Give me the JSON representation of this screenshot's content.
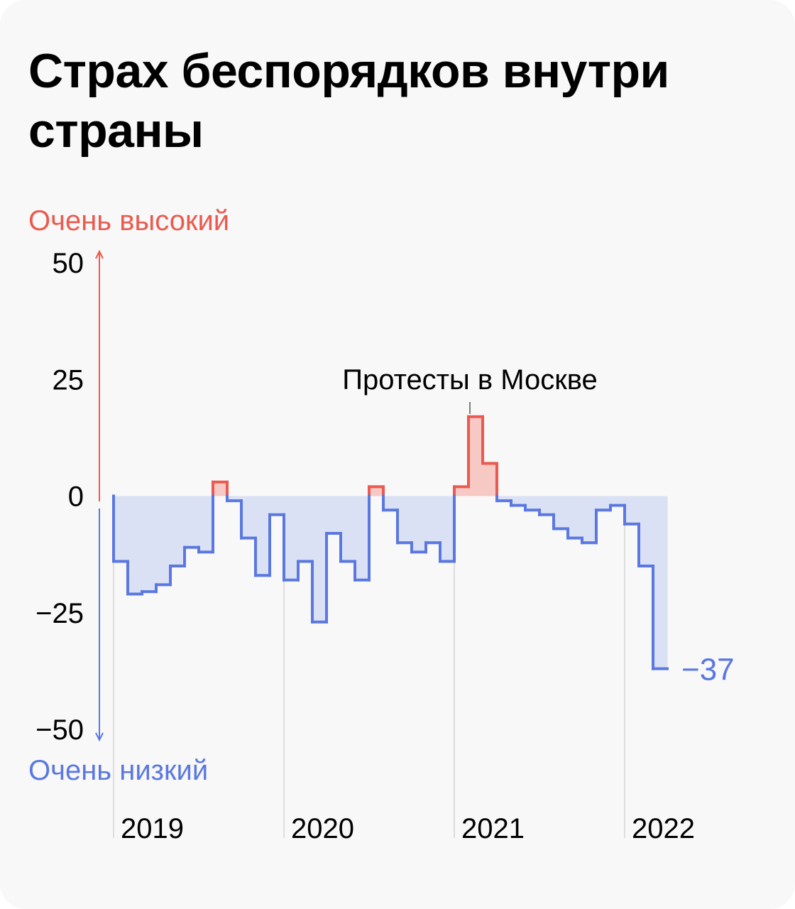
{
  "title": "Страх беспорядков внутри страны",
  "colors": {
    "background": "#f8f8f8",
    "positive": "#ea5a4f",
    "positive_fill": "#f7c9c5",
    "negative": "#5a78e0",
    "negative_fill": "#dbe1f5",
    "gridline": "#d4d4d4",
    "text": "#000000"
  },
  "chart_data": {
    "type": "area",
    "title": "Страх беспорядков внутри страны",
    "step": true,
    "high_label": "Очень высокий",
    "low_label": "Очень низкий",
    "ylim": [
      -50,
      50
    ],
    "yticks": [
      {
        "value": 50,
        "label": "50"
      },
      {
        "value": 25,
        "label": "25"
      },
      {
        "value": 0,
        "label": "0"
      },
      {
        "value": -25,
        "label": "−25"
      },
      {
        "value": -50,
        "label": "−50"
      }
    ],
    "xlim": [
      2019,
      2022.25
    ],
    "xticks": [
      {
        "value": 2019,
        "label": "2019"
      },
      {
        "value": 2020,
        "label": "2020"
      },
      {
        "value": 2021,
        "label": "2021"
      },
      {
        "value": 2022,
        "label": "2022"
      }
    ],
    "grid": "vertical lines at year starts",
    "series": [
      {
        "x": [
          2019,
          2019.0833,
          2019.1667,
          2019.25,
          2019.3333,
          2019.4167,
          2019.5,
          2019.5833,
          2019.6667,
          2019.75,
          2019.8333,
          2019.9167,
          2020,
          2020.0833,
          2020.1667,
          2020.25,
          2020.3333,
          2020.4167,
          2020.5,
          2020.5833,
          2020.6667,
          2020.75,
          2020.8333,
          2020.9167,
          2021,
          2021.0833,
          2021.1667,
          2021.25,
          2021.3333,
          2021.4167,
          2021.5,
          2021.5833,
          2021.6667,
          2021.75,
          2021.8333,
          2021.9167,
          2022,
          2022.0833,
          2022.1667
        ],
        "values": [
          -14,
          -21,
          -20.5,
          -19,
          -15,
          -11,
          -12,
          3,
          -1,
          -9,
          -17,
          -4,
          -18,
          -14,
          -27,
          -8,
          -14,
          -18,
          2,
          -3,
          -10,
          -12,
          -10,
          -14,
          2,
          17,
          7,
          -1,
          -2,
          -3,
          -4,
          -7,
          -9,
          -10,
          -3,
          -2,
          -6,
          -15,
          -37
        ]
      }
    ],
    "annotations": [
      {
        "text": "Протесты в Москве",
        "x": 2021.125,
        "y": 17
      },
      {
        "text": "−37",
        "x": 2022.25,
        "y": -37
      }
    ]
  }
}
